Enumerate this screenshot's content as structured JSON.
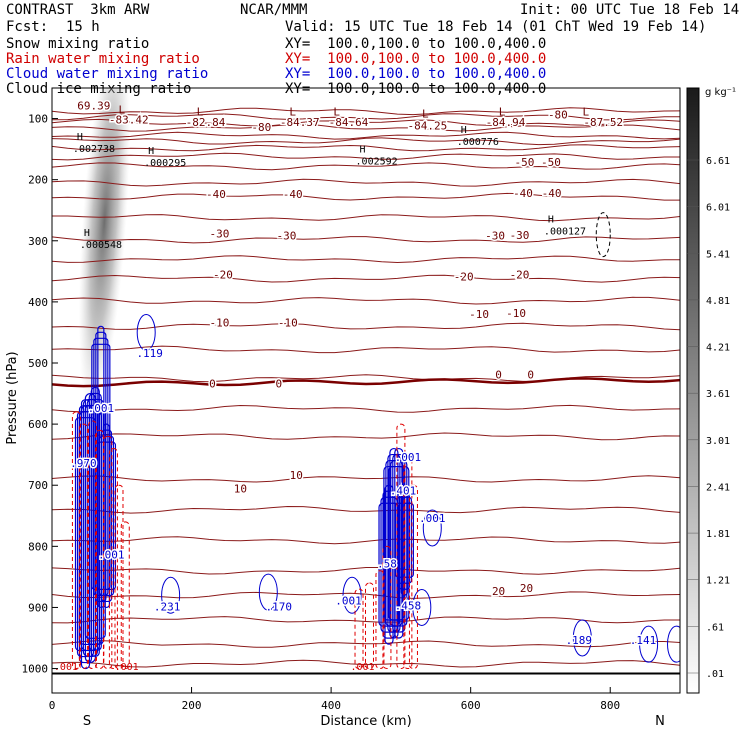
{
  "header": {
    "model": "CONTRAST  3km ARW",
    "org": "NCAR/MMM",
    "init": "Init: 00 UTC Tue 18 Feb 14",
    "fcst_label": "Fcst:",
    "fcst_value": "15 h",
    "valid": "Valid: 15 UTC Tue 18 Feb 14 (01 ChT Wed 19 Feb 14)",
    "fields": [
      {
        "name": "Snow mixing ratio",
        "xy": "XY=  100.0,100.0 to 100.0,400.0",
        "color": "#000000"
      },
      {
        "name": "Rain water mixing ratio",
        "xy": "XY=  100.0,100.0 to 100.0,400.0",
        "color": "#d00000"
      },
      {
        "name": "Cloud water mixing ratio",
        "xy": "XY=  100.0,100.0 to 100.0,400.0",
        "color": "#0000d0"
      },
      {
        "name": "Cloud ice mixing ratio",
        "xy": "XY=  100.0,100.0 to 100.0,400.0",
        "color": "#000000"
      }
    ]
  },
  "chart_data": {
    "type": "cross-section contour",
    "xlabel": "Distance (km)",
    "ylabel": "Pressure (hPa)",
    "xlim": [
      0,
      900
    ],
    "ylim": [
      1040,
      50
    ],
    "x_ticks": [
      0,
      200,
      400,
      600,
      800
    ],
    "y_ticks": [
      100,
      200,
      300,
      400,
      500,
      600,
      700,
      800,
      900,
      1000
    ],
    "x_end_labels": {
      "left": "S",
      "right": "N"
    },
    "colorbar": {
      "units": "g kg⁻¹",
      "ticks": [
        ".01",
        ".61",
        "1.21",
        "1.81",
        "2.41",
        "3.01",
        "3.61",
        "4.21",
        "4.81",
        "5.41",
        "6.01",
        "6.61"
      ]
    },
    "temperature_labels": [
      {
        "x": 60,
        "p": 85,
        "text": "69.39"
      },
      {
        "x": 110,
        "p": 108,
        "text": "-83.42"
      },
      {
        "x": 220,
        "p": 112,
        "text": "-82.84"
      },
      {
        "x": 300,
        "p": 120,
        "text": "-80"
      },
      {
        "x": 355,
        "p": 112,
        "text": "-84.37"
      },
      {
        "x": 425,
        "p": 112,
        "text": "-84.64"
      },
      {
        "x": 538,
        "p": 118,
        "text": "-84.25"
      },
      {
        "x": 650,
        "p": 112,
        "text": "-84.94"
      },
      {
        "x": 725,
        "p": 100,
        "text": "-80"
      },
      {
        "x": 790,
        "p": 112,
        "text": "-87.52"
      },
      {
        "x": 677,
        "p": 178,
        "text": "-50"
      },
      {
        "x": 715,
        "p": 178,
        "text": "-50"
      },
      {
        "x": 235,
        "p": 230,
        "text": "-40"
      },
      {
        "x": 345,
        "p": 230,
        "text": "-40"
      },
      {
        "x": 675,
        "p": 228,
        "text": "-40"
      },
      {
        "x": 716,
        "p": 228,
        "text": "-40"
      },
      {
        "x": 240,
        "p": 295,
        "text": "-30"
      },
      {
        "x": 336,
        "p": 298,
        "text": "-30"
      },
      {
        "x": 635,
        "p": 298,
        "text": "-30"
      },
      {
        "x": 670,
        "p": 297,
        "text": "-30"
      },
      {
        "x": 245,
        "p": 362,
        "text": "-20"
      },
      {
        "x": 590,
        "p": 365,
        "text": "-20"
      },
      {
        "x": 670,
        "p": 362,
        "text": "-20"
      },
      {
        "x": 240,
        "p": 440,
        "text": "-10"
      },
      {
        "x": 338,
        "p": 440,
        "text": "-10"
      },
      {
        "x": 612,
        "p": 426,
        "text": "-10"
      },
      {
        "x": 665,
        "p": 425,
        "text": "-10"
      },
      {
        "x": 230,
        "p": 540,
        "text": "0"
      },
      {
        "x": 325,
        "p": 540,
        "text": "0"
      },
      {
        "x": 640,
        "p": 525,
        "text": "0"
      },
      {
        "x": 686,
        "p": 525,
        "text": "0"
      },
      {
        "x": 270,
        "p": 712,
        "text": "10"
      },
      {
        "x": 350,
        "p": 690,
        "text": "10"
      },
      {
        "x": 640,
        "p": 880,
        "text": "20"
      },
      {
        "x": 680,
        "p": 875,
        "text": "20"
      }
    ],
    "snow_max_labels": [
      {
        "x": 30,
        "p": 155,
        "text": ".002738"
      },
      {
        "x": 132,
        "p": 178,
        "text": ".000295"
      },
      {
        "x": 435,
        "p": 175,
        "text": ".002592"
      },
      {
        "x": 580,
        "p": 143,
        "text": ".000776"
      },
      {
        "x": 40,
        "p": 312,
        "text": ".000548"
      },
      {
        "x": 705,
        "p": 290,
        "text": ".000127"
      }
    ],
    "low_labels": [
      {
        "x": 100,
        "p": 92
      },
      {
        "x": 212,
        "p": 95
      },
      {
        "x": 345,
        "p": 95
      },
      {
        "x": 408,
        "p": 95
      },
      {
        "x": 535,
        "p": 98
      },
      {
        "x": 645,
        "p": 95
      },
      {
        "x": 765,
        "p": 95
      }
    ],
    "cloud_water_labels": [
      {
        "x": 140,
        "p": 490,
        "text": ".119"
      },
      {
        "x": 70,
        "p": 580,
        "text": ".001"
      },
      {
        "x": 45,
        "p": 670,
        "text": ".970"
      },
      {
        "x": 85,
        "p": 820,
        "text": ".001"
      },
      {
        "x": 165,
        "p": 905,
        "text": ".231"
      },
      {
        "x": 325,
        "p": 905,
        "text": ".170"
      },
      {
        "x": 425,
        "p": 895,
        "text": ".001"
      },
      {
        "x": 510,
        "p": 660,
        "text": ".001"
      },
      {
        "x": 503,
        "p": 715,
        "text": ".401"
      },
      {
        "x": 545,
        "p": 760,
        "text": ".001"
      },
      {
        "x": 480,
        "p": 835,
        "text": ".58"
      },
      {
        "x": 510,
        "p": 903,
        "text": ".458"
      },
      {
        "x": 755,
        "p": 960,
        "text": ".189"
      },
      {
        "x": 847,
        "p": 960,
        "text": ".141"
      }
    ],
    "rain_labels": [
      {
        "x": 20,
        "p": 1002,
        "text": ".001"
      },
      {
        "x": 107,
        "p": 1002,
        "text": ".001"
      },
      {
        "x": 445,
        "p": 1002,
        "text": ".001"
      }
    ],
    "isotherms_p": [
      88,
      97,
      107,
      115,
      128,
      137,
      148,
      162,
      178,
      205,
      228,
      262,
      298,
      330,
      362,
      398,
      440,
      478,
      525,
      575,
      620,
      690,
      740,
      790,
      840,
      880,
      920,
      960,
      992
    ],
    "zero_isotherm_p": 535
  }
}
